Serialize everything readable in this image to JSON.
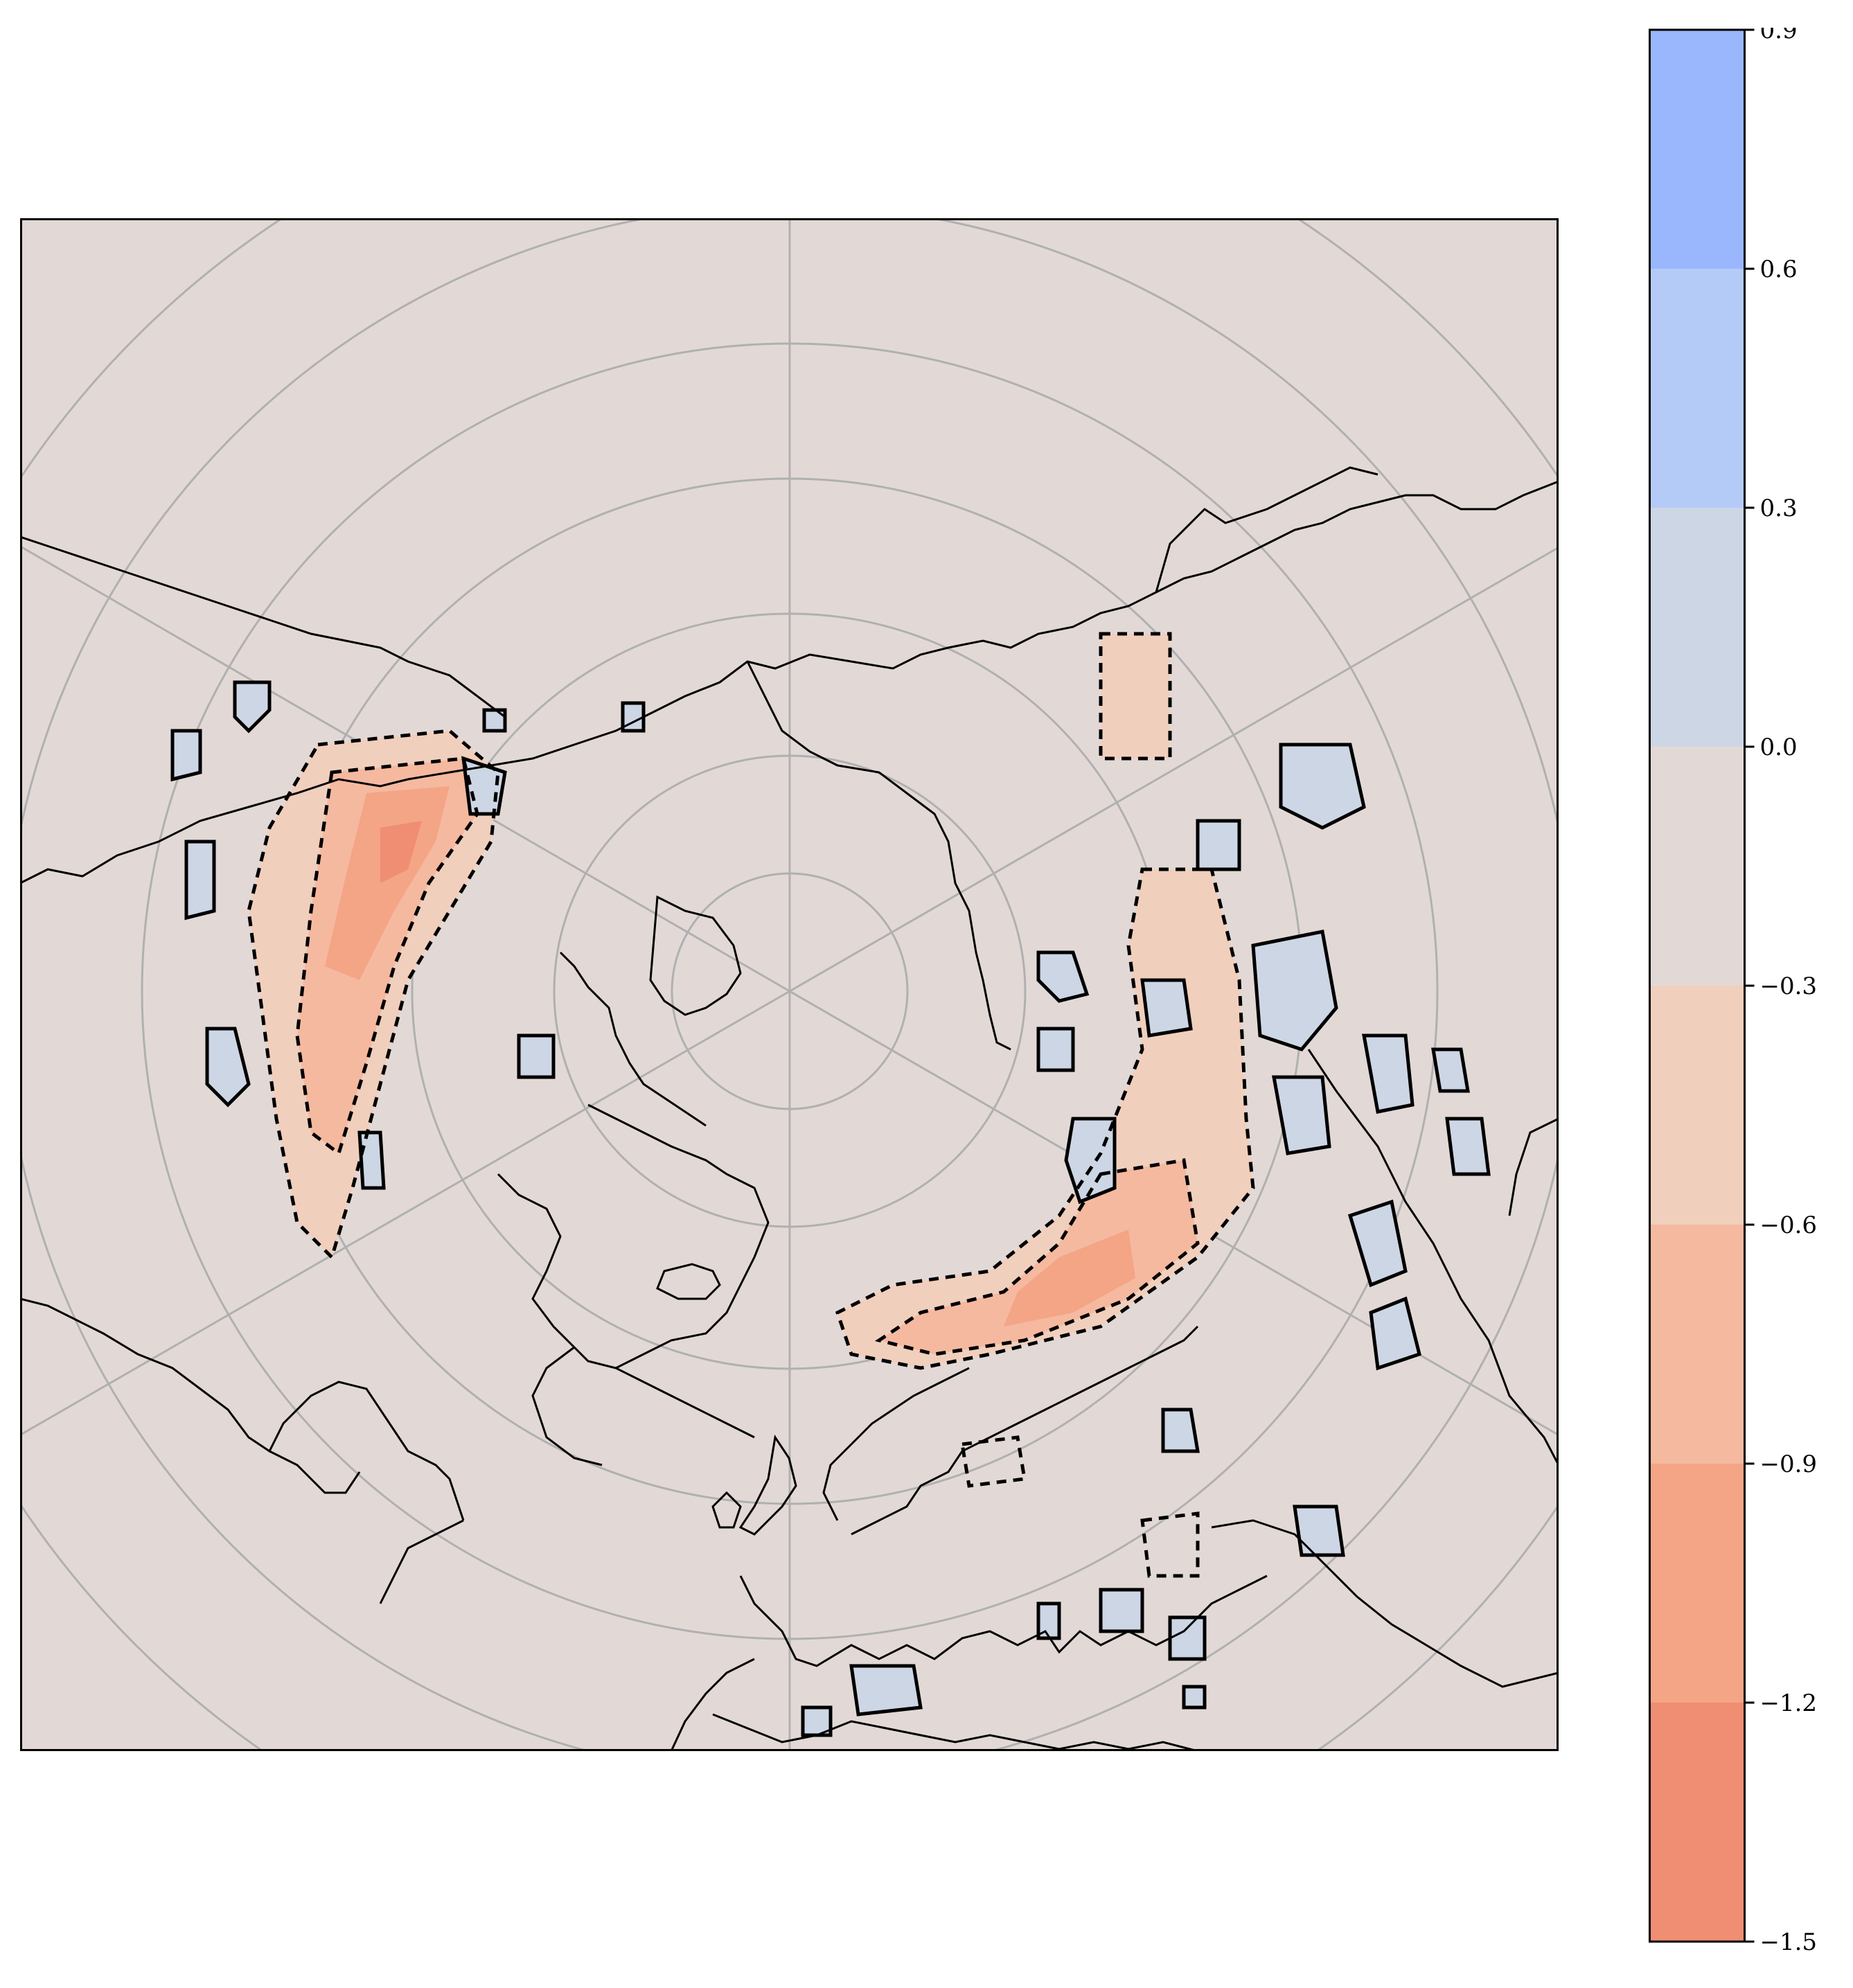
{
  "figure": {
    "map": {
      "projection": "north-polar-stereographic",
      "background_color": "#e2d9d6",
      "graticule_color": "#b0b0b0",
      "coastline_color": "#000000",
      "features": [
        "coastlines",
        "graticule",
        "filled-anomaly-contours",
        "significance-outlines"
      ]
    },
    "colorbar": {
      "orientation": "vertical",
      "ticks": [
        "0.9",
        "0.6",
        "0.3",
        "0.0",
        "−0.3",
        "−0.6",
        "−0.9",
        "−1.2",
        "−1.5"
      ],
      "levels": [
        {
          "range": "0.6 to 0.9",
          "color": "#9ab7fd"
        },
        {
          "range": "0.3 to 0.6",
          "color": "#b5cbf7"
        },
        {
          "range": "0.0 to 0.3",
          "color": "#cdd6e5"
        },
        {
          "range": "-0.3 to 0.0",
          "color": "#e2d9d6"
        },
        {
          "range": "-0.6 to -0.3",
          "color": "#f1cfbd"
        },
        {
          "range": "-0.9 to -0.6",
          "color": "#f5b9a0"
        },
        {
          "range": "-1.2 to -0.9",
          "color": "#f4a586"
        },
        {
          "range": "-1.5 to -1.2",
          "color": "#ef8e72"
        }
      ]
    }
  }
}
